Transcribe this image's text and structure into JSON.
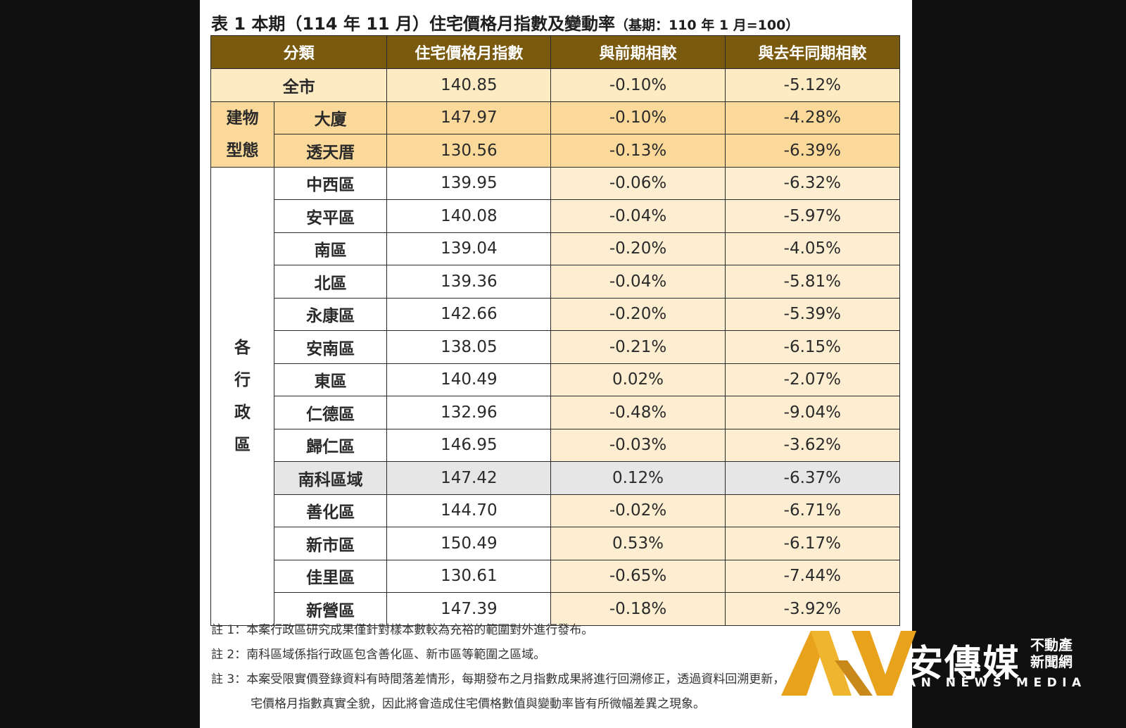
{
  "title": {
    "main": "表 1 本期（114 年 11 月）住宅價格月指數及變動率",
    "base": "（基期：110 年 1 月=100）"
  },
  "headers": [
    "分類",
    "住宅價格月指數",
    "與前期相較",
    "與去年同期相較"
  ],
  "groups": {
    "building_type": "建物型態",
    "district": "各行政區"
  },
  "rows": {
    "city": {
      "name": "全市",
      "index": "140.85",
      "mom": "-0.10%",
      "yoy": "-5.12%"
    },
    "building": [
      {
        "name": "大廈",
        "index": "147.97",
        "mom": "-0.10%",
        "yoy": "-4.28%"
      },
      {
        "name": "透天厝",
        "index": "130.56",
        "mom": "-0.13%",
        "yoy": "-6.39%"
      }
    ],
    "districts": [
      {
        "name": "中西區",
        "index": "139.95",
        "mom": "-0.06%",
        "yoy": "-6.32%"
      },
      {
        "name": "安平區",
        "index": "140.08",
        "mom": "-0.04%",
        "yoy": "-5.97%"
      },
      {
        "name": "南區",
        "index": "139.04",
        "mom": "-0.20%",
        "yoy": "-4.05%"
      },
      {
        "name": "北區",
        "index": "139.36",
        "mom": "-0.04%",
        "yoy": "-5.81%"
      },
      {
        "name": "永康區",
        "index": "142.66",
        "mom": "-0.20%",
        "yoy": "-5.39%"
      },
      {
        "name": "安南區",
        "index": "138.05",
        "mom": "-0.21%",
        "yoy": "-6.15%"
      },
      {
        "name": "東區",
        "index": "140.49",
        "mom": "0.02%",
        "yoy": "-2.07%"
      },
      {
        "name": "仁德區",
        "index": "132.96",
        "mom": "-0.48%",
        "yoy": "-9.04%"
      },
      {
        "name": "歸仁區",
        "index": "146.95",
        "mom": "-0.03%",
        "yoy": "-3.62%"
      },
      {
        "name": "南科區域",
        "index": "147.42",
        "mom": "0.12%",
        "yoy": "-6.37%"
      },
      {
        "name": "善化區",
        "index": "144.70",
        "mom": "-0.02%",
        "yoy": "-6.71%"
      },
      {
        "name": "新市區",
        "index": "150.49",
        "mom": "0.53%",
        "yoy": "-6.17%"
      },
      {
        "name": "佳里區",
        "index": "130.61",
        "mom": "-0.65%",
        "yoy": "-7.44%"
      },
      {
        "name": "新營區",
        "index": "147.39",
        "mom": "-0.18%",
        "yoy": "-3.92%"
      }
    ]
  },
  "notes": [
    "註 1：本案行政區研究成果僅針對樣本數較為充裕的範圍對外進行發布。",
    "註 2：南科區域係指行政區包含善化區、新市區等範圍之區域。",
    "註 3：本案受限實價登錄資料有時間落差情形，每期發布之月指數成果將進行回溯修正，透過資料回溯更新，",
    "宅價格月指數真實全貌，因此將會造成住宅價格數值與變動率皆有所微幅差異之現象。"
  ],
  "logo": {
    "cn": "安傳媒",
    "sub": "不動產新聞網",
    "en": "AN NEWS MEDIA"
  },
  "colors": {
    "header_bg": "#7a5a0e",
    "city_row": "#fdebc4",
    "building_rows": "#fbd99a",
    "change_cells": "#fdeed2",
    "highlight_row": "#e6e6e6",
    "logo_gold": "#e8a21c"
  }
}
